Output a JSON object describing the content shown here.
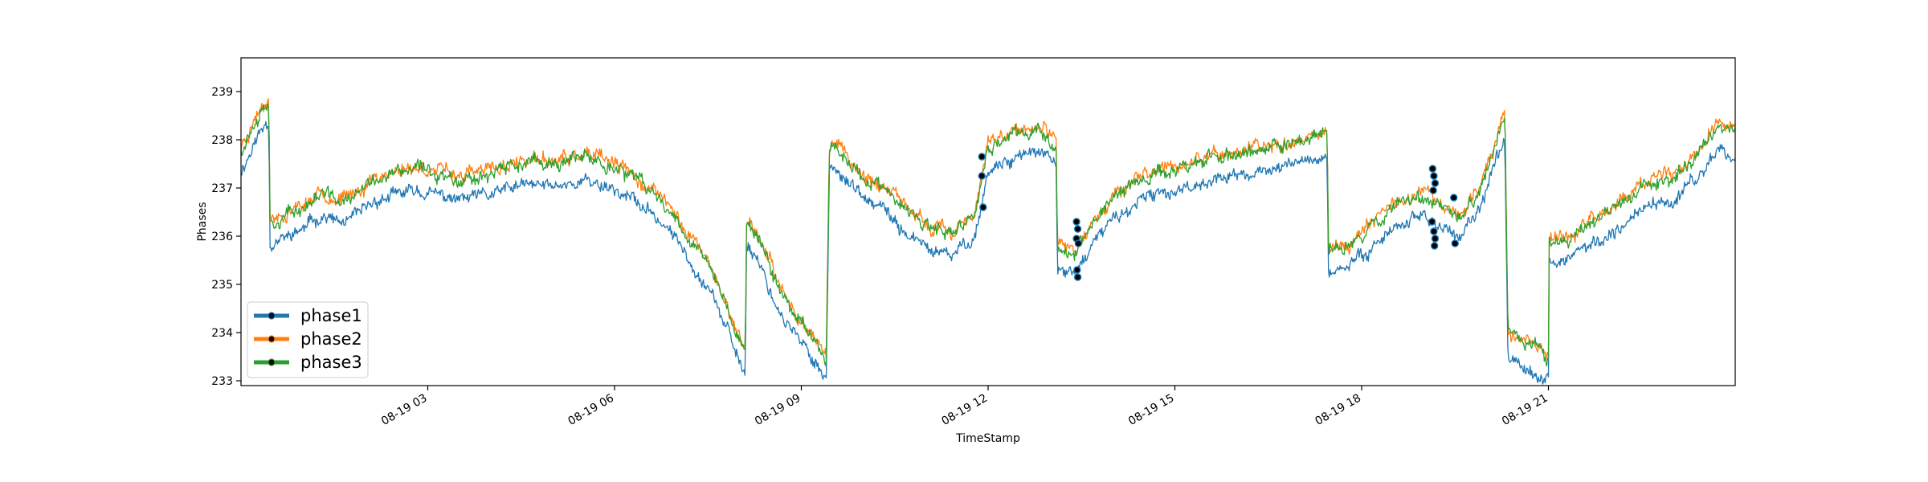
{
  "chart_data": {
    "type": "line",
    "xlabel": "TimeStamp",
    "ylabel": "Phases",
    "x_range_hours": [
      0.0,
      24.0
    ],
    "ylim": [
      232.9,
      239.7
    ],
    "y_ticks": [
      233,
      234,
      235,
      236,
      237,
      238,
      239
    ],
    "x_ticks": [
      {
        "hour": 3,
        "label": "08-19 03"
      },
      {
        "hour": 6,
        "label": "08-19 06"
      },
      {
        "hour": 9,
        "label": "08-19 09"
      },
      {
        "hour": 12,
        "label": "08-19 12"
      },
      {
        "hour": 15,
        "label": "08-19 15"
      },
      {
        "hour": 18,
        "label": "08-19 18"
      },
      {
        "hour": 21,
        "label": "08-19 21"
      }
    ],
    "grid": false,
    "legend_position": "lower-left",
    "base_profile": {
      "hours": [
        0.0,
        0.3,
        0.45,
        0.46,
        0.7,
        1.0,
        1.3,
        1.6,
        1.8,
        2.2,
        2.8,
        3.5,
        4.0,
        4.5,
        5.0,
        5.5,
        5.9,
        6.3,
        6.8,
        7.2,
        7.6,
        7.95,
        8.1,
        8.12,
        8.3,
        8.6,
        9.0,
        9.2,
        9.4,
        9.45,
        9.55,
        10.0,
        10.3,
        10.6,
        11.0,
        11.4,
        11.8,
        12.0,
        12.4,
        12.8,
        13.1,
        13.11,
        13.4,
        13.7,
        14.0,
        14.5,
        15.0,
        15.5,
        16.0,
        16.5,
        17.0,
        17.45,
        17.46,
        17.8,
        18.2,
        18.6,
        19.0,
        19.2,
        19.6,
        19.9,
        20.3,
        20.35,
        20.6,
        21.0,
        21.01,
        21.3,
        21.7,
        22.1,
        22.5,
        23.0,
        23.5,
        23.7,
        24.0
      ],
      "values": [
        237.8,
        238.6,
        238.9,
        236.3,
        236.4,
        236.6,
        236.9,
        236.7,
        236.8,
        237.2,
        237.4,
        237.2,
        237.3,
        237.5,
        237.5,
        237.6,
        237.5,
        237.2,
        236.7,
        236.0,
        235.2,
        234.0,
        233.6,
        236.3,
        236.0,
        235.0,
        234.2,
        233.9,
        233.5,
        237.8,
        237.9,
        237.2,
        237.0,
        236.6,
        236.2,
        236.0,
        236.5,
        237.8,
        238.1,
        238.2,
        237.9,
        235.7,
        235.7,
        236.3,
        236.8,
        237.2,
        237.4,
        237.6,
        237.7,
        237.8,
        238.0,
        238.1,
        235.7,
        235.8,
        236.3,
        236.7,
        236.9,
        236.7,
        236.4,
        237.0,
        238.5,
        234.0,
        233.8,
        233.5,
        236.0,
        235.9,
        236.3,
        236.6,
        237.0,
        237.2,
        237.8,
        238.3,
        238.2
      ]
    },
    "series": [
      {
        "name": "phase1",
        "color": "#1f77b4",
        "offset": -0.45,
        "noise": 0.11,
        "seed": 11
      },
      {
        "name": "phase2",
        "color": "#ff7f0e",
        "offset": 0.06,
        "noise": 0.12,
        "seed": 23
      },
      {
        "name": "phase3",
        "color": "#2ca02c",
        "offset": 0.0,
        "noise": 0.12,
        "seed": 37
      }
    ],
    "outlier_points": [
      {
        "x": 11.9,
        "y": 237.65
      },
      {
        "x": 11.9,
        "y": 237.25
      },
      {
        "x": 11.92,
        "y": 236.6
      },
      {
        "x": 13.42,
        "y": 236.3
      },
      {
        "x": 13.44,
        "y": 236.15
      },
      {
        "x": 13.42,
        "y": 235.95
      },
      {
        "x": 13.45,
        "y": 235.85
      },
      {
        "x": 13.43,
        "y": 235.3
      },
      {
        "x": 13.44,
        "y": 235.15
      },
      {
        "x": 19.14,
        "y": 237.4
      },
      {
        "x": 19.16,
        "y": 237.25
      },
      {
        "x": 19.18,
        "y": 237.1
      },
      {
        "x": 19.15,
        "y": 236.95
      },
      {
        "x": 19.13,
        "y": 236.3
      },
      {
        "x": 19.16,
        "y": 236.1
      },
      {
        "x": 19.18,
        "y": 235.95
      },
      {
        "x": 19.17,
        "y": 235.8
      },
      {
        "x": 19.48,
        "y": 236.8
      },
      {
        "x": 19.5,
        "y": 235.85
      }
    ]
  }
}
